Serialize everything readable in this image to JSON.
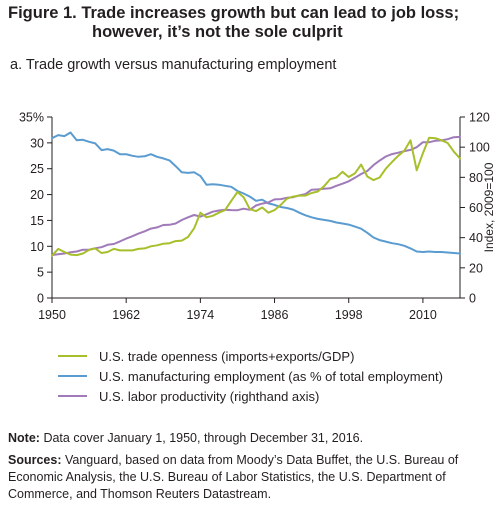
{
  "figure": {
    "title_line1": "Figure 1. Trade increases growth but can lead to job loss;",
    "title_line2": "however, it’s not the sole culprit",
    "subtitle": "a. Trade growth versus manufacturing employment"
  },
  "notes": {
    "note_label": "Note:",
    "note_text": "Data cover January 1, 1950, through December 31, 2016.",
    "sources_label": "Sources:",
    "sources_text": "Vanguard, based on data from Moody’s Data Buffet, the U.S. Bureau of Economic Analysis, the U.S. Bureau of Labor Statistics, the U.S. Department of Commerce, and Thomson Reuters Datastream."
  },
  "chart_data": {
    "type": "line",
    "xlim": [
      1950,
      2016
    ],
    "ylim": [
      0,
      35
    ],
    "y2lim": [
      0,
      120
    ],
    "grid": false,
    "legend_position": "bottom",
    "x_ticks": [
      "1950",
      "1962",
      "1974",
      "1986",
      "1998",
      "2010"
    ],
    "y_ticks": [
      "35%",
      "30",
      "25",
      "20",
      "15",
      "10",
      "5",
      "0"
    ],
    "y2_ticks": [
      "120",
      "100",
      "80",
      "60",
      "40",
      "20",
      "0"
    ],
    "y2label": "Index, 2009=100",
    "series": [
      {
        "name": "U.S. trade openness (imports+exports/GDP)",
        "axis": "left",
        "color": "#a8bf2c",
        "x": [
          1950,
          1951,
          1952,
          1953,
          1954,
          1955,
          1956,
          1957,
          1958,
          1959,
          1960,
          1961,
          1962,
          1963,
          1964,
          1965,
          1966,
          1967,
          1968,
          1969,
          1970,
          1971,
          1972,
          1973,
          1974,
          1975,
          1976,
          1977,
          1978,
          1979,
          1980,
          1981,
          1982,
          1983,
          1984,
          1985,
          1986,
          1987,
          1988,
          1989,
          1990,
          1991,
          1992,
          1993,
          1994,
          1995,
          1996,
          1997,
          1998,
          1999,
          2000,
          2001,
          2002,
          2003,
          2004,
          2005,
          2006,
          2007,
          2008,
          2009,
          2010,
          2011,
          2012,
          2013,
          2014,
          2015,
          2016
        ],
        "values": [
          8.2,
          9.5,
          8.9,
          8.4,
          8.3,
          8.6,
          9.3,
          9.6,
          8.7,
          8.9,
          9.5,
          9.2,
          9.2,
          9.2,
          9.5,
          9.6,
          10.0,
          10.2,
          10.5,
          10.6,
          11.0,
          11.1,
          11.8,
          13.5,
          16.5,
          15.6,
          15.9,
          16.5,
          17.0,
          18.8,
          20.5,
          19.5,
          17.2,
          16.8,
          17.5,
          16.5,
          17.0,
          18.0,
          19.2,
          19.6,
          19.8,
          19.8,
          20.3,
          20.6,
          21.6,
          23.0,
          23.3,
          24.4,
          23.4,
          24.1,
          25.8,
          23.5,
          22.8,
          23.3,
          25.0,
          26.3,
          27.5,
          28.5,
          30.5,
          24.7,
          28.0,
          31.0,
          30.9,
          30.5,
          30.0,
          28.3,
          27.0
        ]
      },
      {
        "name": "U.S. manufacturing employment (as % of total employment)",
        "axis": "left",
        "color": "#5a9bd0",
        "x": [
          1950,
          1951,
          1952,
          1953,
          1954,
          1955,
          1956,
          1957,
          1958,
          1959,
          1960,
          1961,
          1962,
          1963,
          1964,
          1965,
          1966,
          1967,
          1968,
          1969,
          1970,
          1971,
          1972,
          1973,
          1974,
          1975,
          1976,
          1977,
          1978,
          1979,
          1980,
          1981,
          1982,
          1983,
          1984,
          1985,
          1986,
          1987,
          1988,
          1989,
          1990,
          1991,
          1992,
          1993,
          1994,
          1995,
          1996,
          1997,
          1998,
          1999,
          2000,
          2001,
          2002,
          2003,
          2004,
          2005,
          2006,
          2007,
          2008,
          2009,
          2010,
          2011,
          2012,
          2013,
          2014,
          2015,
          2016
        ],
        "values": [
          30.9,
          31.5,
          31.3,
          32.0,
          30.5,
          30.6,
          30.2,
          29.9,
          28.6,
          28.8,
          28.5,
          27.8,
          27.8,
          27.5,
          27.3,
          27.4,
          27.8,
          27.3,
          27.0,
          26.6,
          25.5,
          24.3,
          24.2,
          24.3,
          23.6,
          21.9,
          22.0,
          21.9,
          21.7,
          21.5,
          20.7,
          20.2,
          19.6,
          18.8,
          19.0,
          18.3,
          18.0,
          17.6,
          17.4,
          17.1,
          16.5,
          16.0,
          15.6,
          15.3,
          15.1,
          14.9,
          14.6,
          14.4,
          14.2,
          13.8,
          13.4,
          12.6,
          11.7,
          11.2,
          10.9,
          10.6,
          10.4,
          10.1,
          9.6,
          9.0,
          8.9,
          9.0,
          8.9,
          8.9,
          8.8,
          8.7,
          8.6
        ]
      },
      {
        "name": "U.S. labor productivity (righthand axis)",
        "axis": "right",
        "color": "#a07ab9",
        "x": [
          1950,
          1951,
          1952,
          1953,
          1954,
          1955,
          1956,
          1957,
          1958,
          1959,
          1960,
          1961,
          1962,
          1963,
          1964,
          1965,
          1966,
          1967,
          1968,
          1969,
          1970,
          1971,
          1972,
          1973,
          1974,
          1975,
          1976,
          1977,
          1978,
          1979,
          1980,
          1981,
          1982,
          1983,
          1984,
          1985,
          1986,
          1987,
          1988,
          1989,
          1990,
          1991,
          1992,
          1993,
          1994,
          1995,
          1996,
          1997,
          1998,
          1999,
          2000,
          2001,
          2002,
          2003,
          2004,
          2005,
          2006,
          2007,
          2008,
          2009,
          2010,
          2011,
          2012,
          2013,
          2014,
          2015,
          2016
        ],
        "values": [
          28.5,
          29.0,
          29.5,
          30.3,
          30.8,
          32.0,
          32.0,
          33.0,
          33.7,
          35.3,
          35.8,
          37.5,
          39.4,
          41.0,
          42.7,
          44.2,
          46.0,
          46.8,
          48.4,
          48.5,
          49.4,
          51.7,
          53.5,
          55.0,
          54.0,
          55.5,
          57.2,
          58.0,
          58.5,
          58.3,
          58.2,
          59.2,
          58.5,
          61.3,
          62.6,
          63.4,
          65.4,
          65.6,
          66.4,
          66.8,
          68.1,
          68.9,
          71.8,
          72.0,
          72.4,
          72.7,
          74.4,
          75.8,
          77.4,
          79.7,
          82.2,
          84.2,
          88.1,
          91.1,
          93.8,
          95.4,
          96.3,
          97.4,
          98.2,
          100.0,
          103.3,
          103.3,
          104.2,
          104.5,
          105.3,
          106.6,
          106.8
        ]
      }
    ]
  }
}
